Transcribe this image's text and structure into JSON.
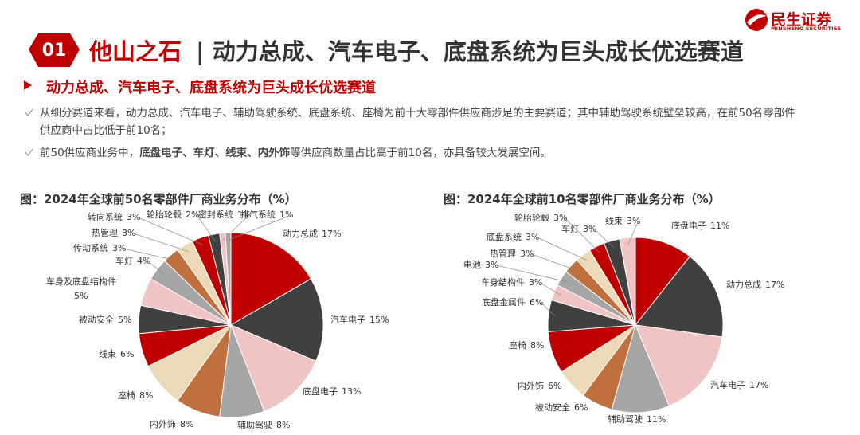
{
  "header": {
    "badge": "01",
    "section": "他山之石",
    "title": "| 动力总成、汽车电子、底盘系统为巨头成长优选赛道",
    "subtitle": "动力总成、汽车电子、底盘系统为巨头成长优选赛道",
    "logo": "民生证券",
    "logo_en": "MINSHENG SECURITIES"
  },
  "bullets": [
    [
      "从细分赛道来看，动力总成、汽车电子、辅助驾驶系统、底盘系统、座椅为前十大零部件供应商涉足的主要赛道；其中辅助驾驶系统壁垒较高，在前50名零部件供应商中占比低于前10名；"
    ],
    [
      "前50供应商业务中，",
      "底盘电子、车灯、线束、内外饰",
      "等供应商数量占比高于前10名，亦具备较大发展空间。"
    ]
  ],
  "chart_data": [
    {
      "type": "pie",
      "title": "图：2024年全球前50名零部件厂商业务分布（%）",
      "categories": [
        "动力总成",
        "汽车电子",
        "底盘电子",
        "辅助驾驶",
        "内外饰",
        "座椅",
        "线束",
        "被动安全",
        "车身及底盘结构件",
        "车灯",
        "传动系统",
        "热管理",
        "转向系统",
        "轮胎轮毂",
        "密封系统",
        "排气系统"
      ],
      "values": [
        17,
        15,
        13,
        8,
        8,
        8,
        6,
        5,
        5,
        4,
        3,
        3,
        3,
        2,
        1,
        1
      ],
      "value_labels": [
        "17%",
        "15%",
        "13%",
        "8%",
        "8%",
        "8%",
        "6%",
        "5%",
        "5%",
        "4%",
        "3%",
        "3%",
        "3%",
        "2%",
        "1%",
        "1%"
      ],
      "colors": [
        "#c00000",
        "#404040",
        "#f0c4c4",
        "#a6a6a6",
        "#c0703c",
        "#ecd9b8"
      ]
    },
    {
      "type": "pie",
      "title": "图：2024年全球前10名零部件厂商业务分布（%）",
      "categories": [
        "底盘电子",
        "动力总成",
        "汽车电子",
        "辅助驾驶",
        "被动安全",
        "内外饰",
        "座椅",
        "底盘金属件",
        "车身结构件",
        "电池",
        "热管理",
        "底盘系统",
        "轮胎轮毂",
        "车灯",
        "线束"
      ],
      "values": [
        11,
        17,
        17,
        11,
        6,
        6,
        8,
        6,
        3,
        3,
        3,
        3,
        3,
        3,
        3
      ],
      "value_labels": [
        "11%",
        "17%",
        "17%",
        "11%",
        "6%",
        "6%",
        "8%",
        "6%",
        "3%",
        "3%",
        "3%",
        "3%",
        "3%",
        "3%",
        "3%"
      ],
      "colors": [
        "#c00000",
        "#404040",
        "#f0c4c4",
        "#a6a6a6",
        "#c0703c",
        "#ecd9b8"
      ]
    }
  ]
}
